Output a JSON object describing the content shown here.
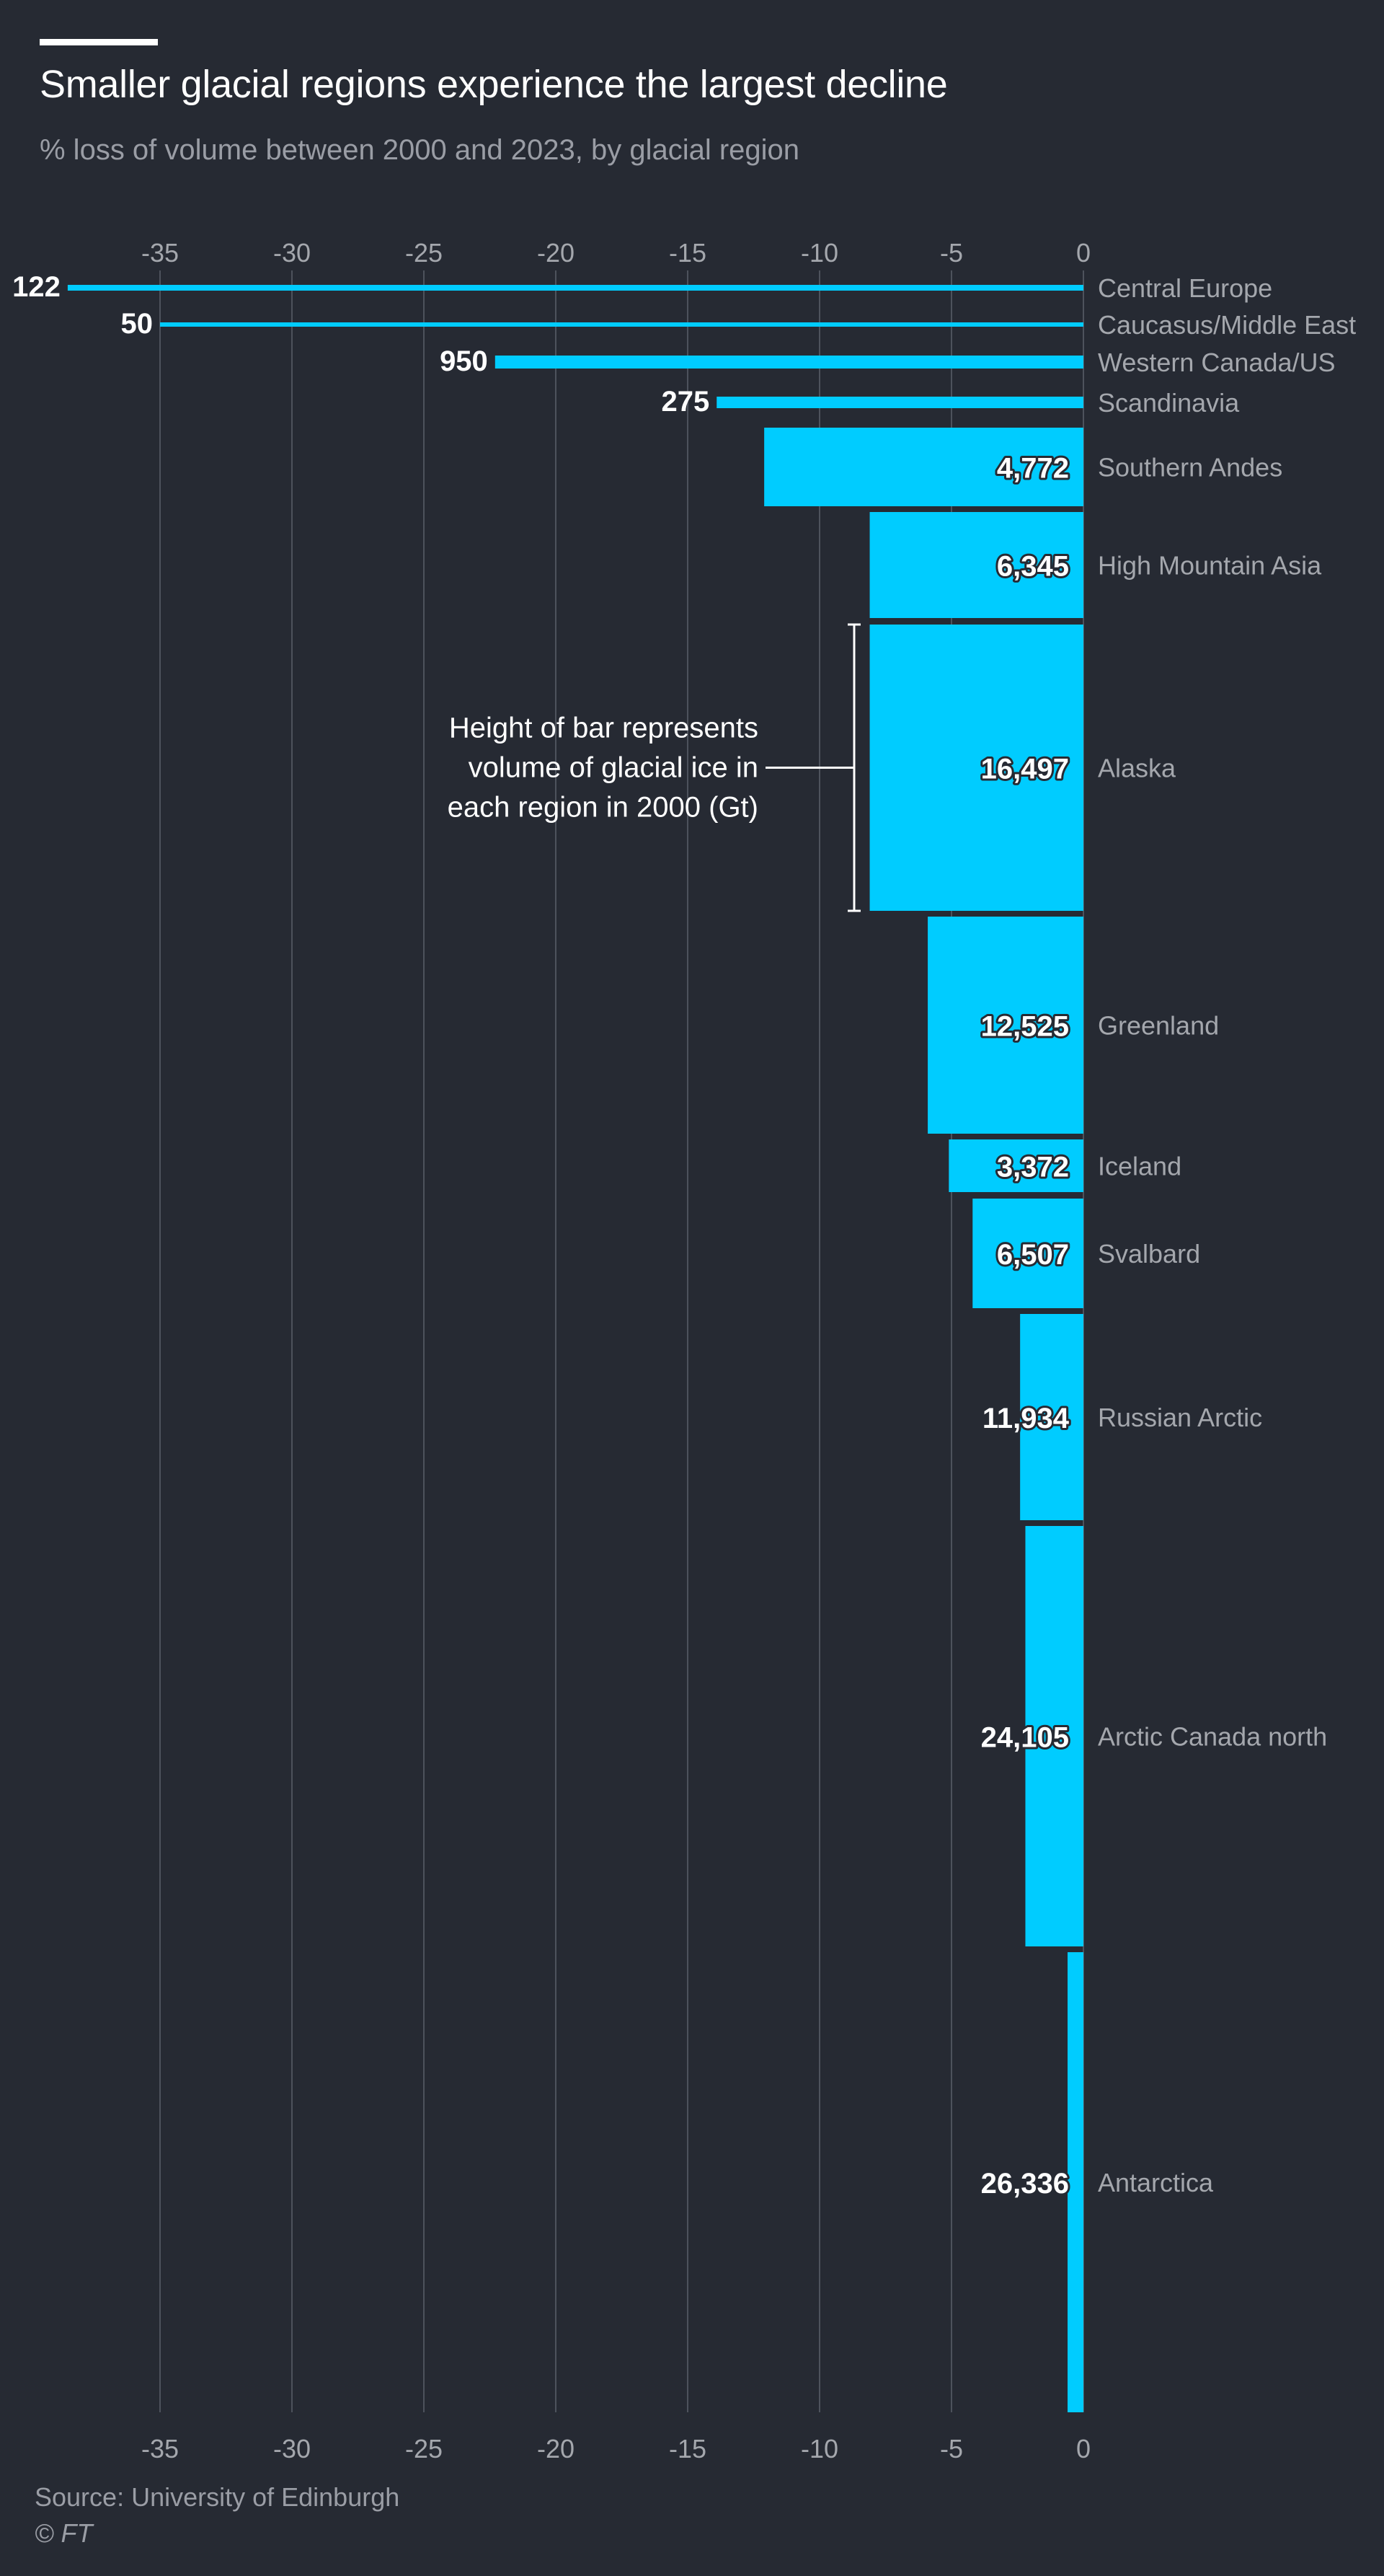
{
  "header": {
    "title": "Smaller glacial regions experience the largest decline",
    "subtitle": "% loss of volume between 2000 and 2023, by glacial region"
  },
  "footer": {
    "source": "Source: University of Edinburgh",
    "copyright": "© FT"
  },
  "colors": {
    "background": "#262a33",
    "bar": "#00ccff",
    "grid": "#4d525c",
    "region_label": "#a4a7ad",
    "tick_label": "#a4a7ad",
    "value_label": "#ffffff"
  },
  "chart_data": {
    "type": "bar",
    "orientation": "horizontal",
    "bar_height_encodes": "volume of glacial ice in 2000 (Gt)",
    "xlim": [
      -38.5,
      0
    ],
    "x_ticks": [
      -35,
      -30,
      -25,
      -20,
      -15,
      -10,
      -5,
      0
    ],
    "x_tick_labels": [
      "-35",
      "-30",
      "-25",
      "-20",
      "-15",
      "-10",
      "-5",
      "0"
    ],
    "grid": true,
    "bars": [
      {
        "region": "Central Europe",
        "pct_change": -38.5,
        "volume_label": "122"
      },
      {
        "region": "Caucasus/Middle East",
        "pct_change": -35.0,
        "volume_label": "50"
      },
      {
        "region": "Western Canada/US",
        "pct_change": -22.3,
        "volume_label": "950"
      },
      {
        "region": "Scandinavia",
        "pct_change": -13.9,
        "volume_label": "275"
      },
      {
        "region": "Southern Andes",
        "pct_change": -12.1,
        "volume_label": "4,772"
      },
      {
        "region": "High Mountain Asia",
        "pct_change": -8.1,
        "volume_label": "6,345"
      },
      {
        "region": "Alaska",
        "pct_change": -8.1,
        "volume_label": "16,497"
      },
      {
        "region": "Greenland",
        "pct_change": -5.9,
        "volume_label": "12,525"
      },
      {
        "region": "Iceland",
        "pct_change": -5.1,
        "volume_label": "3,372"
      },
      {
        "region": "Svalbard",
        "pct_change": -4.2,
        "volume_label": "6,507"
      },
      {
        "region": "Russian Arctic",
        "pct_change": -2.4,
        "volume_label": "11,934"
      },
      {
        "region": "Arctic Canada north",
        "pct_change": -2.2,
        "volume_label": "24,105"
      },
      {
        "region": "Antarctica",
        "pct_change": -0.6,
        "volume_label": "26,336"
      }
    ],
    "annotation": {
      "lines": [
        "Height of bar represents",
        "volume of glacial ice in",
        "each region in 2000 (Gt)"
      ],
      "target_region": "Alaska"
    }
  }
}
